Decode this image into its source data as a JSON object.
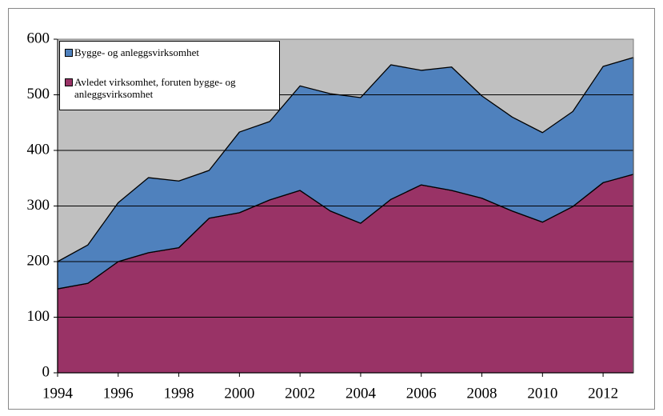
{
  "chart_data": {
    "type": "stacked-area",
    "x": [
      1994,
      1995,
      1996,
      1997,
      1998,
      1999,
      2000,
      2001,
      2002,
      2003,
      2004,
      2005,
      2006,
      2007,
      2008,
      2009,
      2010,
      2011,
      2012,
      2013
    ],
    "series": [
      {
        "name": "Avledet virksomhet, foruten bygge- og anleggsvirksomhet",
        "color": "#993366",
        "values": [
          151,
          161,
          200,
          216,
          225,
          278,
          288,
          311,
          328,
          291,
          269,
          312,
          338,
          328,
          314,
          291,
          271,
          299,
          342,
          357
        ]
      },
      {
        "name": "Bygge- og anleggsvirksomhet",
        "color": "#4f81bd",
        "values": [
          49,
          69,
          106,
          135,
          120,
          86,
          145,
          141,
          188,
          211,
          226,
          242,
          206,
          222,
          184,
          169,
          161,
          171,
          209,
          210
        ]
      }
    ],
    "xlim": [
      1994,
      2013
    ],
    "xticks": [
      1994,
      1996,
      1998,
      2000,
      2002,
      2004,
      2006,
      2008,
      2010,
      2012
    ],
    "ylim": [
      0,
      600
    ],
    "yticks": [
      0,
      100,
      200,
      300,
      400,
      500,
      600
    ],
    "grid": true
  }
}
